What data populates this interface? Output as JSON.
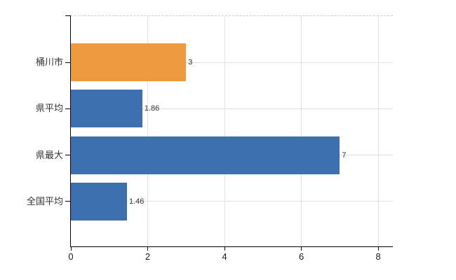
{
  "chart_data": {
    "type": "bar",
    "orientation": "horizontal",
    "title": "",
    "xlabel": "",
    "ylabel": "",
    "legend": "none",
    "grid": "vertical gridlines at x ticks and horizontal gridlines at category centers; dashed top border",
    "categories": [
      "桶川市",
      "県平均",
      "県最大",
      "全国平均"
    ],
    "values": [
      3,
      1.86,
      7,
      1.46
    ],
    "value_labels": [
      "3",
      "1.86",
      "7",
      "1.46"
    ],
    "bar_colors": [
      "#ec9a3d",
      "#3c70ae",
      "#3c70ae",
      "#3c70ae"
    ],
    "x_ticks": [
      0,
      2,
      4,
      6,
      8
    ],
    "x_tick_labels": [
      "0",
      "2",
      "4",
      "6",
      "8"
    ],
    "xlim": [
      0,
      8.4
    ]
  },
  "colors": {
    "highlight_bar": "#ec9a3d",
    "default_bar": "#3c70ae",
    "axis": "#000000",
    "v_gridline": "#e2e2e2",
    "h_gridline": "#dfe3df",
    "top_border": "#c9c9c9",
    "text": "#333333",
    "background": "#ffffff"
  }
}
